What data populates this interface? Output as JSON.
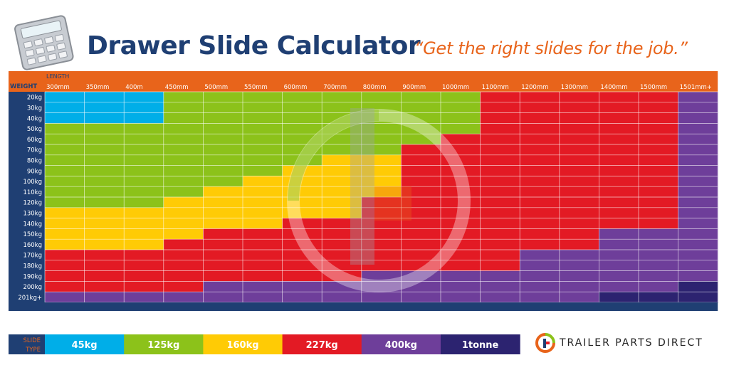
{
  "header": {
    "title": "Drawer Slide Calculator",
    "tagline": "“Get the right slides for the job.”",
    "icon": "calculator-icon"
  },
  "brand": {
    "text": "TRAILER PARTS DIRECT",
    "logo_icon": "trailer-parts-direct-logo-icon"
  },
  "chart_data": {
    "type": "heatmap",
    "x_axis_label": "LENGTH",
    "y_axis_label": "WEIGHT",
    "x_categories": [
      "300mm",
      "350mm",
      "400m",
      "450mm",
      "500mm",
      "550mm",
      "600mm",
      "700mm",
      "800mm",
      "900mm",
      "1000mm",
      "1100mm",
      "1200mm",
      "1300mm",
      "1400mm",
      "1500mm",
      "1501mm+"
    ],
    "y_categories": [
      "20kg",
      "30kg",
      "40kg",
      "50kg",
      "60kg",
      "70kg",
      "80kg",
      "90kg",
      "100kg",
      "110kg",
      "120kg",
      "130kg",
      "140kg",
      "150kg",
      "160kg",
      "170kg",
      "180kg",
      "190kg",
      "200kg",
      "201kg+"
    ],
    "legend_label_line1": "SLIDE",
    "legend_label_line2": "TYPE",
    "legend": [
      {
        "label": "45kg",
        "color": "#00aee8"
      },
      {
        "label": "125kg",
        "color": "#8cc21a"
      },
      {
        "label": "160kg",
        "color": "#ffcb05"
      },
      {
        "label": "227kg",
        "color": "#e31a24"
      },
      {
        "label": "400kg",
        "color": "#6e3e9a"
      },
      {
        "label": "1tonne",
        "color": "#2c2370"
      }
    ],
    "cells": [
      [
        0,
        0,
        0,
        1,
        1,
        1,
        1,
        1,
        1,
        1,
        1,
        3,
        3,
        3,
        3,
        3,
        4
      ],
      [
        0,
        0,
        0,
        1,
        1,
        1,
        1,
        1,
        1,
        1,
        1,
        3,
        3,
        3,
        3,
        3,
        4
      ],
      [
        0,
        0,
        0,
        1,
        1,
        1,
        1,
        1,
        1,
        1,
        1,
        3,
        3,
        3,
        3,
        3,
        4
      ],
      [
        1,
        1,
        1,
        1,
        1,
        1,
        1,
        1,
        1,
        1,
        1,
        3,
        3,
        3,
        3,
        3,
        4
      ],
      [
        1,
        1,
        1,
        1,
        1,
        1,
        1,
        1,
        1,
        1,
        3,
        3,
        3,
        3,
        3,
        3,
        4
      ],
      [
        1,
        1,
        1,
        1,
        1,
        1,
        1,
        1,
        1,
        3,
        3,
        3,
        3,
        3,
        3,
        3,
        4
      ],
      [
        1,
        1,
        1,
        1,
        1,
        1,
        1,
        2,
        2,
        3,
        3,
        3,
        3,
        3,
        3,
        3,
        4
      ],
      [
        1,
        1,
        1,
        1,
        1,
        1,
        2,
        2,
        2,
        3,
        3,
        3,
        3,
        3,
        3,
        3,
        4
      ],
      [
        1,
        1,
        1,
        1,
        1,
        2,
        2,
        2,
        2,
        3,
        3,
        3,
        3,
        3,
        3,
        3,
        4
      ],
      [
        1,
        1,
        1,
        1,
        2,
        2,
        2,
        2,
        2,
        3,
        3,
        3,
        3,
        3,
        3,
        3,
        4
      ],
      [
        1,
        1,
        1,
        2,
        2,
        2,
        2,
        2,
        3,
        3,
        3,
        3,
        3,
        3,
        3,
        3,
        4
      ],
      [
        2,
        2,
        2,
        2,
        2,
        2,
        2,
        2,
        3,
        3,
        3,
        3,
        3,
        3,
        3,
        3,
        4
      ],
      [
        2,
        2,
        2,
        2,
        2,
        2,
        3,
        3,
        3,
        3,
        3,
        3,
        3,
        3,
        3,
        3,
        4
      ],
      [
        2,
        2,
        2,
        2,
        3,
        3,
        3,
        3,
        3,
        3,
        3,
        3,
        3,
        3,
        4,
        4,
        4
      ],
      [
        2,
        2,
        2,
        3,
        3,
        3,
        3,
        3,
        3,
        3,
        3,
        3,
        3,
        3,
        4,
        4,
        4
      ],
      [
        3,
        3,
        3,
        3,
        3,
        3,
        3,
        3,
        3,
        3,
        3,
        3,
        4,
        4,
        4,
        4,
        4
      ],
      [
        3,
        3,
        3,
        3,
        3,
        3,
        3,
        3,
        3,
        3,
        3,
        3,
        4,
        4,
        4,
        4,
        4
      ],
      [
        3,
        3,
        3,
        3,
        3,
        3,
        3,
        3,
        4,
        4,
        4,
        4,
        4,
        4,
        4,
        4,
        4
      ],
      [
        3,
        3,
        3,
        3,
        4,
        4,
        4,
        4,
        4,
        4,
        4,
        4,
        4,
        4,
        4,
        4,
        5
      ],
      [
        4,
        4,
        4,
        4,
        4,
        4,
        4,
        4,
        4,
        4,
        4,
        4,
        4,
        4,
        5,
        5,
        5
      ]
    ],
    "grid": true
  },
  "colors": {
    "header_orange": "#e8641b",
    "title_blue": "#1f3f73",
    "axis_navy": "#1f3f73",
    "weight_label": "#e8641b"
  }
}
